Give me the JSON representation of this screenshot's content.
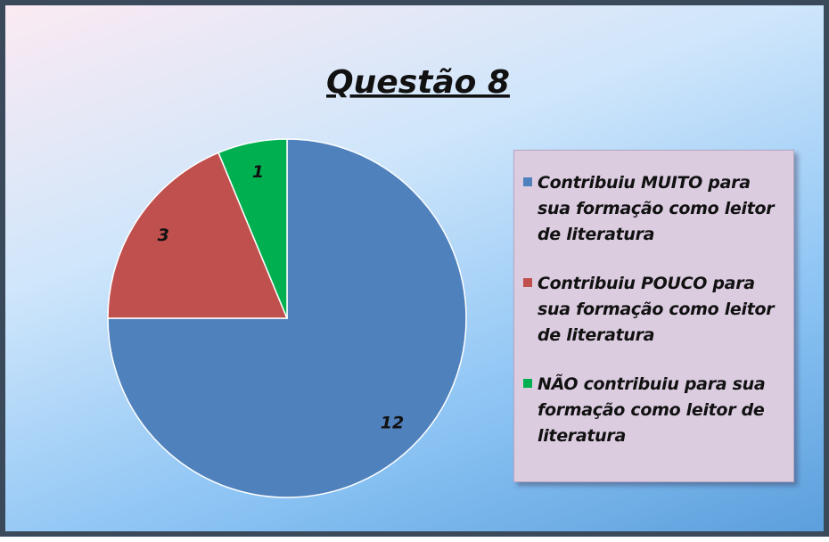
{
  "chart_data": {
    "type": "pie",
    "title": "Questão 8",
    "categories": [
      "Contribuiu MUITO para sua formação como leitor de literatura",
      "Contribuiu POUCO para sua formação como leitor de literatura",
      "NÃO contribuiu para sua formação como leitor de literatura"
    ],
    "values": [
      12,
      3,
      1
    ],
    "colors": [
      "#4f81bd",
      "#c0504d",
      "#00b050"
    ],
    "legend": "right"
  }
}
